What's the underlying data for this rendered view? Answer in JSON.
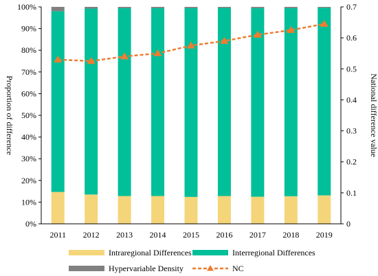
{
  "chart_data": {
    "type": "bar",
    "stacked": true,
    "categories": [
      "2011",
      "2012",
      "2013",
      "2014",
      "2015",
      "2016",
      "2017",
      "2018",
      "2019"
    ],
    "series": [
      {
        "name": "Intraregional Differences",
        "type": "bar",
        "axis": "left",
        "color": "#F5D57A",
        "values": [
          0.147,
          0.135,
          0.128,
          0.128,
          0.124,
          0.128,
          0.125,
          0.127,
          0.131
        ]
      },
      {
        "name": "Interregional Differences",
        "type": "bar",
        "axis": "left",
        "color": "#00BF99",
        "values": [
          0.833,
          0.857,
          0.866,
          0.866,
          0.87,
          0.867,
          0.869,
          0.867,
          0.865
        ]
      },
      {
        "name": "Hypervariable Density",
        "type": "bar",
        "axis": "left",
        "color": "#808080",
        "values": [
          0.02,
          0.008,
          0.006,
          0.006,
          0.006,
          0.005,
          0.006,
          0.006,
          0.004
        ]
      },
      {
        "name": "NC",
        "type": "line",
        "axis": "right",
        "color": "#ED7D31",
        "line_style": "dashed",
        "marker": "triangle",
        "values": [
          0.53,
          0.525,
          0.54,
          0.55,
          0.575,
          0.59,
          0.61,
          0.625,
          0.645
        ]
      }
    ],
    "ylabel": "Proportion of difference",
    "y2label": "National difference value",
    "ylim": [
      0,
      1
    ],
    "y2lim": [
      0,
      0.7
    ],
    "yticks": [
      "0%",
      "10%",
      "20%",
      "30%",
      "40%",
      "50%",
      "60%",
      "70%",
      "80%",
      "90%",
      "100%"
    ],
    "y2ticks": [
      "0",
      "0.1",
      "0.2",
      "0.3",
      "0.4",
      "0.5",
      "0.6",
      "0.7"
    ],
    "legend_position": "bottom",
    "grid": false
  }
}
